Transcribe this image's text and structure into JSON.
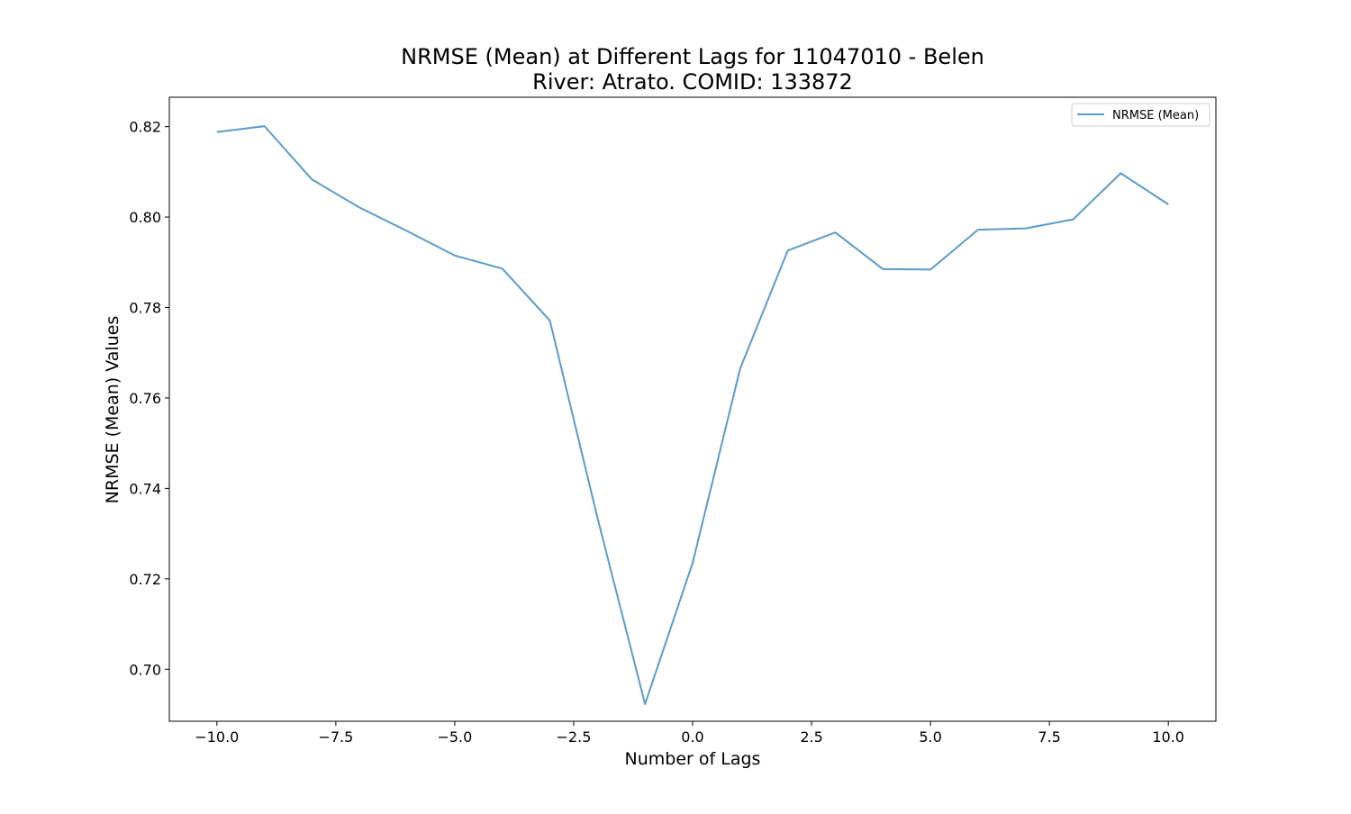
{
  "chart_data": {
    "type": "line",
    "title": "NRMSE (Mean) at Different Lags for 11047010 - Belen",
    "subtitle": "River: Atrato. COMID: 133872",
    "xlabel": "Number of Lags",
    "ylabel": "NRMSE (Mean) Values",
    "xlim": [
      -11,
      11
    ],
    "ylim": [
      0.6885,
      0.8265
    ],
    "x_ticks": [
      -10.0,
      -7.5,
      -5.0,
      -2.5,
      0.0,
      2.5,
      5.0,
      7.5,
      10.0
    ],
    "x_tick_labels": [
      "−10.0",
      "−7.5",
      "−5.0",
      "−2.5",
      "0.0",
      "2.5",
      "5.0",
      "7.5",
      "10.0"
    ],
    "y_ticks": [
      0.7,
      0.72,
      0.74,
      0.76,
      0.78,
      0.8,
      0.82
    ],
    "y_tick_labels": [
      "0.70",
      "0.72",
      "0.74",
      "0.76",
      "0.78",
      "0.80",
      "0.82"
    ],
    "grid": false,
    "legend_position": "top-right",
    "series": [
      {
        "name": "NRMSE (Mean)",
        "color": "#5b9bc9",
        "x": [
          -10,
          -9,
          -8,
          -7,
          -6,
          -5,
          -4,
          -3,
          -2,
          -1,
          0,
          1,
          2,
          3,
          4,
          5,
          6,
          7,
          8,
          9,
          10
        ],
        "values": [
          0.8188,
          0.8201,
          0.8083,
          0.8021,
          0.7969,
          0.7915,
          0.7886,
          0.7771,
          0.7335,
          0.6923,
          0.7235,
          0.7665,
          0.7926,
          0.7966,
          0.7885,
          0.7884,
          0.7972,
          0.7975,
          0.7995,
          0.8097,
          0.8028
        ]
      }
    ]
  }
}
